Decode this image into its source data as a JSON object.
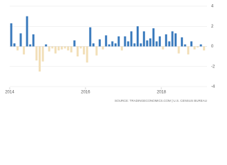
{
  "chart_data": {
    "type": "bar",
    "categories": [
      "2014",
      null,
      null,
      null,
      null,
      null,
      null,
      null,
      null,
      null,
      null,
      null,
      null,
      null,
      null,
      null,
      null,
      null,
      null,
      null,
      null,
      null,
      null,
      null,
      "2016",
      null,
      null,
      null,
      null,
      null,
      null,
      null,
      null,
      null,
      null,
      null,
      null,
      null,
      null,
      null,
      null,
      null,
      null,
      null,
      null,
      null,
      null,
      null,
      "2018",
      null,
      null,
      null,
      null,
      null,
      null,
      null,
      null,
      null,
      null,
      null,
      null,
      null
    ],
    "values": [
      2.3,
      0.3,
      -0.4,
      1.3,
      -0.8,
      3.0,
      0.2,
      1.2,
      -1.4,
      -2.5,
      -1.5,
      0.2,
      -0.5,
      -0.2,
      -0.7,
      -0.4,
      -0.3,
      -0.2,
      -0.4,
      -0.6,
      0.6,
      -1.0,
      -0.2,
      -0.8,
      -1.6,
      1.9,
      0.3,
      -0.9,
      0.7,
      -0.3,
      1.1,
      0.2,
      0.5,
      0.3,
      1.0,
      -0.4,
      1.0,
      0.5,
      1.5,
      0.3,
      2.0,
      0.3,
      1.5,
      0.6,
      0.8,
      1.8,
      0.5,
      1.0,
      -0.3,
      1.2,
      0.5,
      1.5,
      1.3,
      -0.7,
      0.9,
      0.2,
      -0.8,
      0.5,
      -0.3,
      -0.1,
      0.2,
      -0.4
    ],
    "color_positive": "#3b7bbd",
    "color_negative": "#f2dfb8",
    "ylim": [
      -4,
      4
    ],
    "yticks": [
      4,
      2,
      0,
      -2,
      -4
    ],
    "grid": true,
    "source": "SOURCE: TRADINGECONOMICS.COM | U.S. CENSUS BUREAU"
  }
}
